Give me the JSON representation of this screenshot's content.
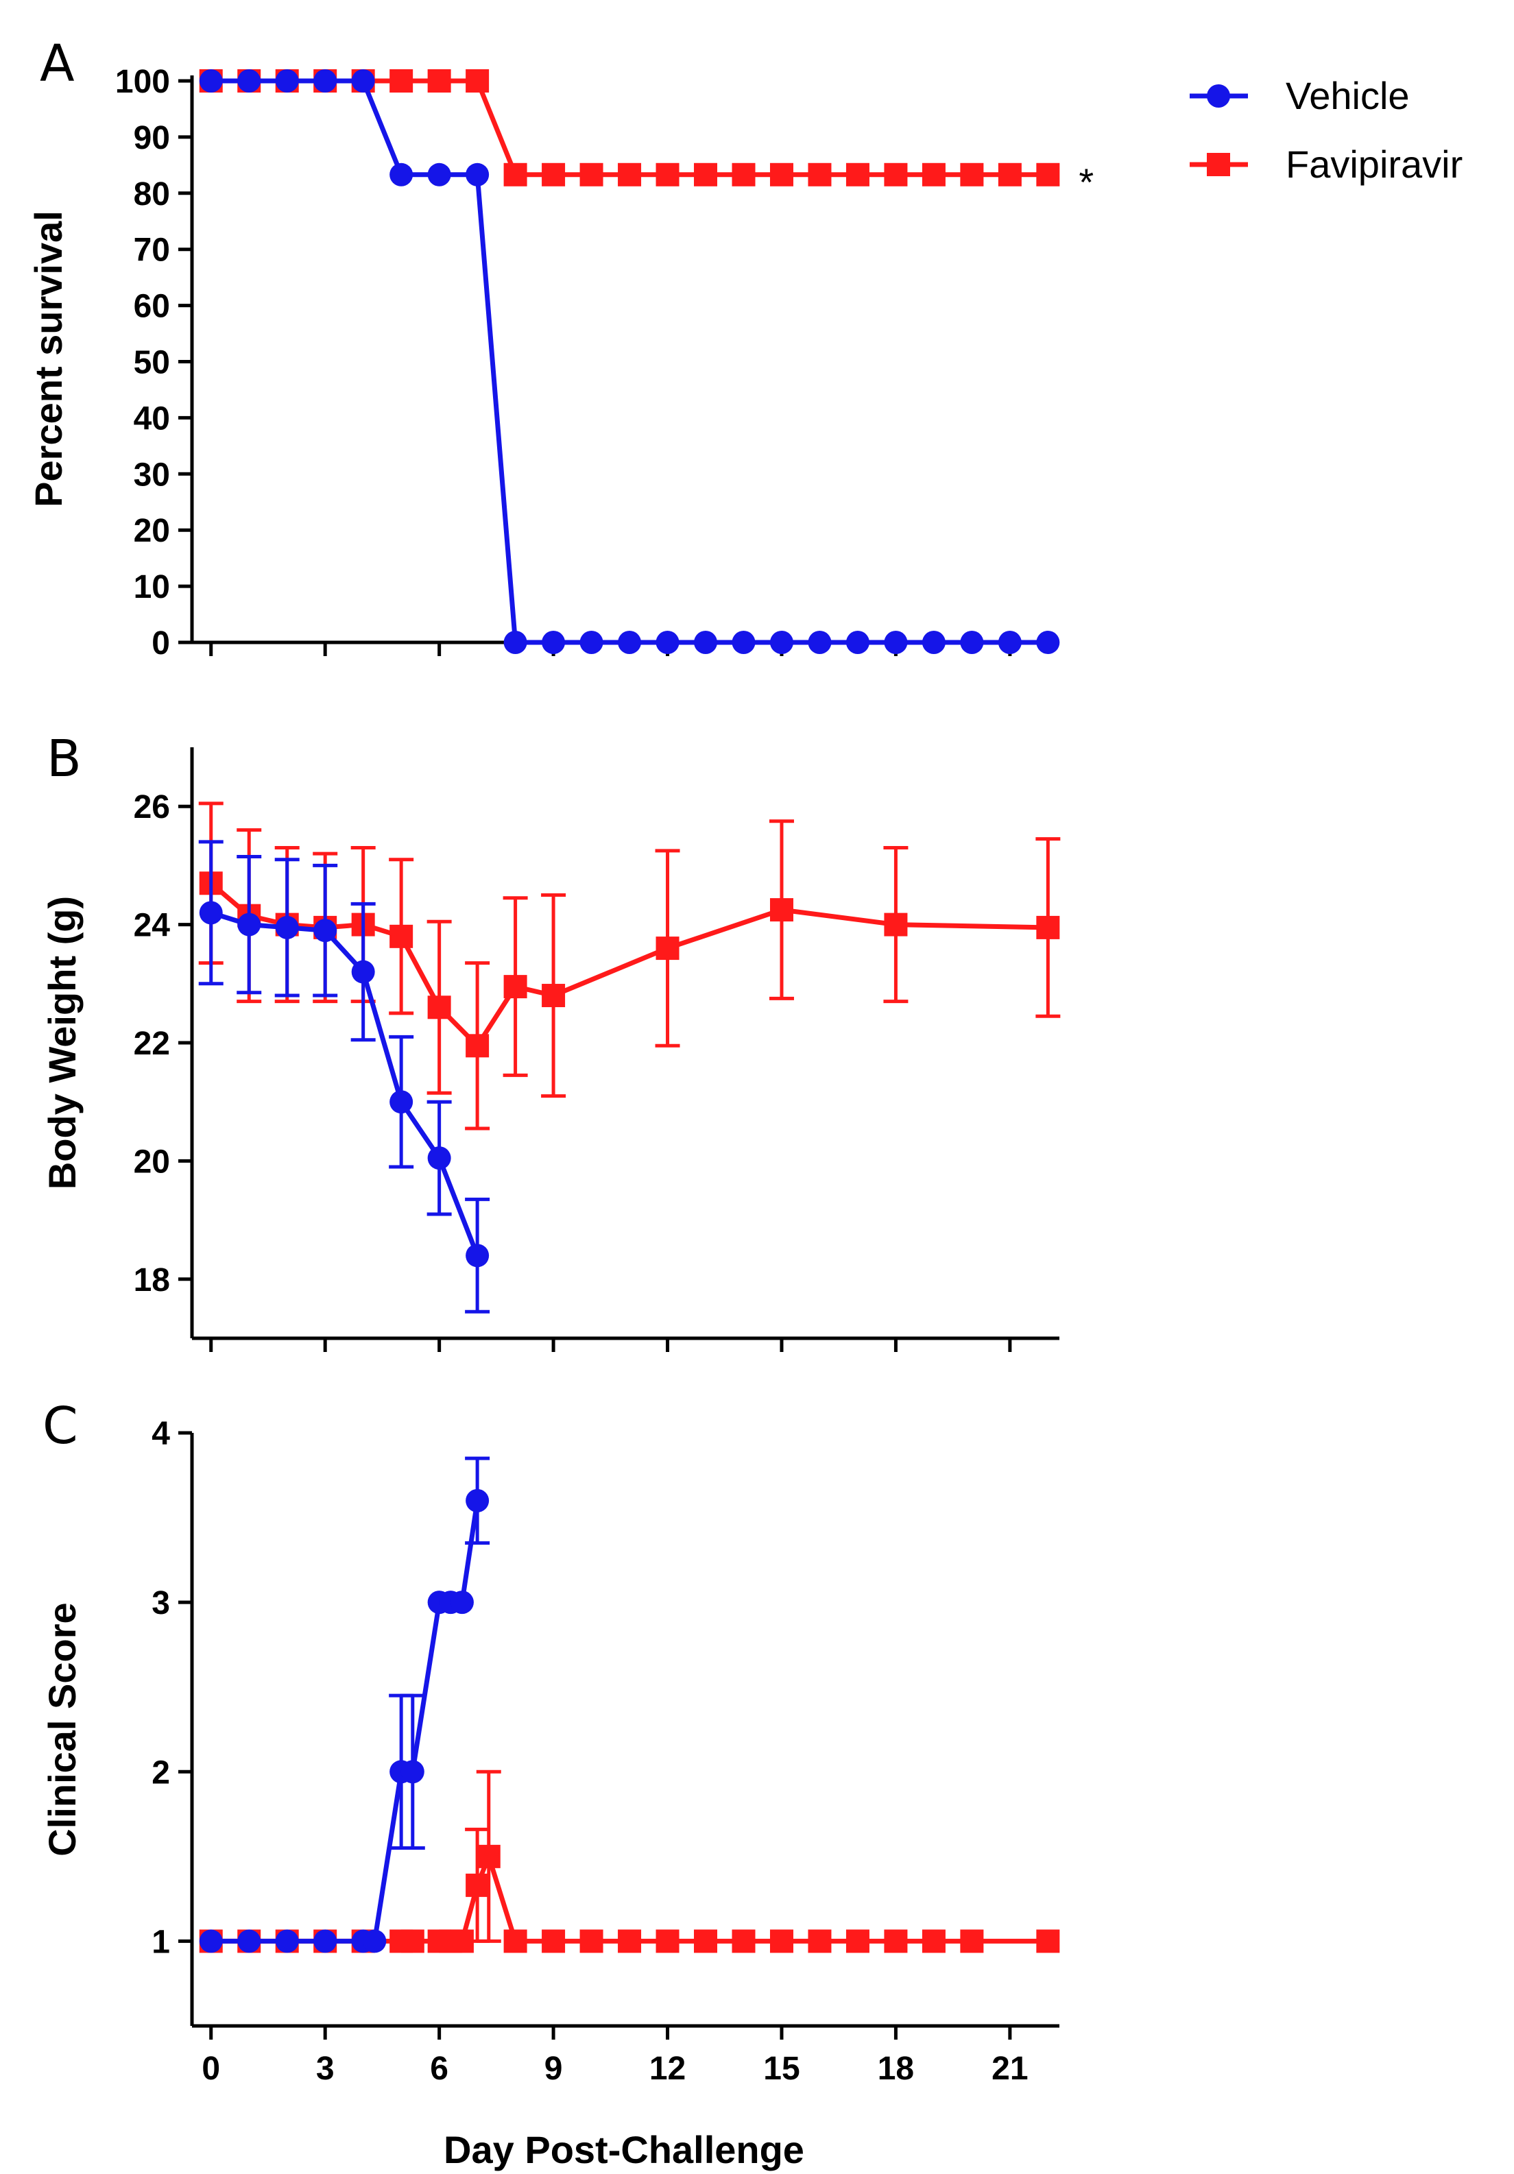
{
  "colors": {
    "vehicle": "#1515e8",
    "favipiravir": "#ff1a1a"
  },
  "legend": [
    {
      "name": "Vehicle",
      "marker": "circle",
      "color": "#1515e8"
    },
    {
      "name": "Favipiravir",
      "marker": "square",
      "color": "#ff1a1a"
    }
  ],
  "x_axis": {
    "label": "Day Post-Challenge",
    "ticks": [
      0,
      3,
      6,
      9,
      12,
      15,
      18,
      21
    ],
    "tick_labels": [
      "0",
      "3",
      "6",
      "9",
      "12",
      "15",
      "18",
      "21"
    ],
    "range": [
      -0.5,
      22.3
    ]
  },
  "chart_data": [
    {
      "panel": "A",
      "type": "line",
      "ylabel": "Percent survival",
      "ylim": [
        0,
        100
      ],
      "yticks": [
        0,
        10,
        20,
        30,
        40,
        50,
        60,
        70,
        80,
        90,
        100
      ],
      "ytick_labels": [
        "0",
        "10",
        "20",
        "30",
        "40",
        "50",
        "60",
        "70",
        "80",
        "90",
        "100"
      ],
      "annotation": {
        "text": "*",
        "series": "Favipiravir",
        "x": 22,
        "y": 83.3
      },
      "series": [
        {
          "name": "Vehicle",
          "marker": "circle",
          "step": true,
          "x": [
            0,
            1,
            2,
            3,
            4,
            5,
            6,
            7,
            8,
            9,
            10,
            11,
            12,
            13,
            14,
            15,
            16,
            17,
            18,
            19,
            20,
            21,
            22
          ],
          "y": [
            100,
            100,
            100,
            100,
            100,
            83.3,
            83.3,
            83.3,
            0,
            0,
            0,
            0,
            0,
            0,
            0,
            0,
            0,
            0,
            0,
            0,
            0,
            0,
            0
          ]
        },
        {
          "name": "Favipiravir",
          "marker": "square",
          "step": true,
          "x": [
            0,
            1,
            2,
            3,
            4,
            5,
            6,
            7,
            8,
            9,
            10,
            11,
            12,
            13,
            14,
            15,
            16,
            17,
            18,
            19,
            20,
            21,
            22
          ],
          "y": [
            100,
            100,
            100,
            100,
            100,
            100,
            100,
            100,
            83.3,
            83.3,
            83.3,
            83.3,
            83.3,
            83.3,
            83.3,
            83.3,
            83.3,
            83.3,
            83.3,
            83.3,
            83.3,
            83.3,
            83.3
          ]
        }
      ]
    },
    {
      "panel": "B",
      "type": "line",
      "ylabel": "Body Weight (g)",
      "ylim": [
        17,
        27
      ],
      "yticks": [
        18,
        20,
        22,
        24,
        26
      ],
      "ytick_labels": [
        "18",
        "20",
        "22",
        "24",
        "26"
      ],
      "series": [
        {
          "name": "Vehicle",
          "marker": "circle",
          "x": [
            0,
            1,
            2,
            3,
            4,
            5,
            6,
            7
          ],
          "y": [
            24.2,
            24.0,
            23.95,
            23.9,
            23.2,
            21.0,
            20.05,
            18.4
          ],
          "error": [
            1.2,
            1.15,
            1.15,
            1.1,
            1.15,
            1.1,
            0.95,
            0.95
          ]
        },
        {
          "name": "Favipiravir",
          "marker": "square",
          "x": [
            0,
            1,
            2,
            3,
            4,
            5,
            6,
            7,
            8,
            9,
            12,
            15,
            18,
            22
          ],
          "y": [
            24.7,
            24.15,
            24.0,
            23.95,
            24.0,
            23.8,
            22.6,
            21.95,
            22.95,
            22.8,
            23.6,
            24.25,
            24.0,
            23.95
          ],
          "error": [
            1.35,
            1.45,
            1.3,
            1.25,
            1.3,
            1.3,
            1.45,
            1.4,
            1.5,
            1.7,
            1.65,
            1.5,
            1.3,
            1.5
          ]
        }
      ]
    },
    {
      "panel": "C",
      "type": "line",
      "ylabel": "Clinical Score",
      "ylim": [
        0.5,
        4
      ],
      "yticks": [
        1,
        2,
        3,
        4
      ],
      "ytick_labels": [
        "1",
        "2",
        "3",
        "4"
      ],
      "series": [
        {
          "name": "Vehicle",
          "marker": "circle",
          "x": [
            0,
            1,
            2,
            3,
            4,
            4.3,
            5,
            5.3,
            6,
            6.3,
            6.6,
            7
          ],
          "y": [
            1,
            1,
            1,
            1,
            1,
            1,
            2,
            2,
            3,
            3,
            3,
            3.6
          ],
          "error": [
            0,
            0,
            0,
            0,
            0,
            0,
            0.45,
            0.45,
            0,
            0,
            0,
            0.25
          ]
        },
        {
          "name": "Favipiravir",
          "marker": "square",
          "x": [
            0,
            1,
            2,
            3,
            4,
            5,
            5.3,
            6,
            6.3,
            6.6,
            7,
            7.3,
            8,
            9,
            10,
            11,
            12,
            13,
            14,
            15,
            16,
            17,
            18,
            19,
            20,
            22
          ],
          "y": [
            1,
            1,
            1,
            1,
            1,
            1,
            1,
            1,
            1,
            1,
            1.33,
            1.5,
            1,
            1,
            1,
            1,
            1,
            1,
            1,
            1,
            1,
            1,
            1,
            1,
            1,
            1
          ],
          "error": [
            0,
            0,
            0,
            0,
            0,
            0,
            0,
            0,
            0,
            0,
            0.33,
            0.5,
            0,
            0,
            0,
            0,
            0,
            0,
            0,
            0,
            0,
            0,
            0,
            0,
            0,
            0
          ]
        }
      ]
    }
  ]
}
